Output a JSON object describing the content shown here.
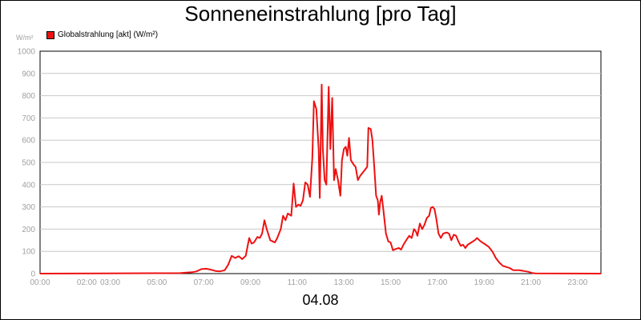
{
  "chart_data": {
    "type": "line",
    "title": "Sonneneinstrahlung [pro Tag]",
    "ylabel": "W/m²",
    "xlabel": "04.08",
    "ylim": [
      0,
      1000
    ],
    "y_ticks": [
      "0",
      "100",
      "200",
      "300",
      "400",
      "500",
      "600",
      "700",
      "800",
      "900",
      "1000"
    ],
    "x_tick_labels": [
      {
        "hour": 0,
        "label": "00:00"
      },
      {
        "hour": 2,
        "label": "02:00"
      },
      {
        "hour": 3,
        "label": "03:00"
      },
      {
        "hour": 5,
        "label": "05:00"
      },
      {
        "hour": 7,
        "label": "07:00"
      },
      {
        "hour": 9,
        "label": "09:00"
      },
      {
        "hour": 11,
        "label": "11:00"
      },
      {
        "hour": 13,
        "label": "13:00"
      },
      {
        "hour": 15,
        "label": "15:00"
      },
      {
        "hour": 17,
        "label": "17:00"
      },
      {
        "hour": 19,
        "label": "19:00"
      },
      {
        "hour": 21,
        "label": "21:00"
      },
      {
        "hour": 23,
        "label": "23:00"
      }
    ],
    "grid": true,
    "legend_position": "top-left",
    "series": [
      {
        "name": "Globalstrahlung [akt] (W/m²)",
        "color": "#ee1111",
        "points": [
          [
            0,
            0
          ],
          [
            6.0,
            2
          ],
          [
            6.2,
            4
          ],
          [
            6.5,
            6
          ],
          [
            6.7,
            10
          ],
          [
            6.9,
            20
          ],
          [
            7.1,
            22
          ],
          [
            7.3,
            18
          ],
          [
            7.5,
            12
          ],
          [
            7.7,
            10
          ],
          [
            7.9,
            15
          ],
          [
            8.05,
            40
          ],
          [
            8.2,
            80
          ],
          [
            8.35,
            70
          ],
          [
            8.5,
            78
          ],
          [
            8.65,
            65
          ],
          [
            8.8,
            80
          ],
          [
            8.95,
            160
          ],
          [
            9.05,
            135
          ],
          [
            9.15,
            140
          ],
          [
            9.3,
            165
          ],
          [
            9.4,
            160
          ],
          [
            9.5,
            180
          ],
          [
            9.6,
            240
          ],
          [
            9.7,
            200
          ],
          [
            9.85,
            150
          ],
          [
            9.95,
            145
          ],
          [
            10.05,
            140
          ],
          [
            10.15,
            160
          ],
          [
            10.3,
            200
          ],
          [
            10.4,
            260
          ],
          [
            10.5,
            240
          ],
          [
            10.6,
            270
          ],
          [
            10.75,
            260
          ],
          [
            10.85,
            405
          ],
          [
            10.95,
            300
          ],
          [
            11.05,
            310
          ],
          [
            11.15,
            305
          ],
          [
            11.25,
            330
          ],
          [
            11.35,
            410
          ],
          [
            11.45,
            400
          ],
          [
            11.55,
            345
          ],
          [
            11.65,
            520
          ],
          [
            11.72,
            775
          ],
          [
            11.82,
            740
          ],
          [
            11.92,
            560
          ],
          [
            11.97,
            340
          ],
          [
            12.05,
            850
          ],
          [
            12.1,
            560
          ],
          [
            12.18,
            420
          ],
          [
            12.25,
            400
          ],
          [
            12.35,
            840
          ],
          [
            12.42,
            560
          ],
          [
            12.5,
            790
          ],
          [
            12.58,
            420
          ],
          [
            12.65,
            470
          ],
          [
            12.75,
            420
          ],
          [
            12.85,
            350
          ],
          [
            12.92,
            510
          ],
          [
            13.0,
            560
          ],
          [
            13.08,
            570
          ],
          [
            13.15,
            530
          ],
          [
            13.22,
            610
          ],
          [
            13.3,
            510
          ],
          [
            13.42,
            490
          ],
          [
            13.5,
            480
          ],
          [
            13.6,
            420
          ],
          [
            13.7,
            440
          ],
          [
            13.85,
            460
          ],
          [
            14.0,
            480
          ],
          [
            14.05,
            655
          ],
          [
            14.15,
            650
          ],
          [
            14.22,
            600
          ],
          [
            14.3,
            480
          ],
          [
            14.38,
            350
          ],
          [
            14.45,
            330
          ],
          [
            14.5,
            265
          ],
          [
            14.55,
            320
          ],
          [
            14.62,
            350
          ],
          [
            14.7,
            280
          ],
          [
            14.8,
            180
          ],
          [
            14.9,
            145
          ],
          [
            15.0,
            140
          ],
          [
            15.1,
            105
          ],
          [
            15.2,
            110
          ],
          [
            15.35,
            115
          ],
          [
            15.45,
            108
          ],
          [
            15.55,
            130
          ],
          [
            15.7,
            155
          ],
          [
            15.8,
            170
          ],
          [
            15.9,
            160
          ],
          [
            16.0,
            200
          ],
          [
            16.08,
            190
          ],
          [
            16.15,
            170
          ],
          [
            16.25,
            225
          ],
          [
            16.35,
            200
          ],
          [
            16.45,
            220
          ],
          [
            16.55,
            250
          ],
          [
            16.65,
            260
          ],
          [
            16.72,
            295
          ],
          [
            16.8,
            300
          ],
          [
            16.88,
            290
          ],
          [
            16.95,
            250
          ],
          [
            17.05,
            180
          ],
          [
            17.15,
            160
          ],
          [
            17.25,
            180
          ],
          [
            17.4,
            185
          ],
          [
            17.5,
            180
          ],
          [
            17.6,
            150
          ],
          [
            17.7,
            175
          ],
          [
            17.8,
            170
          ],
          [
            17.9,
            145
          ],
          [
            18.0,
            125
          ],
          [
            18.1,
            130
          ],
          [
            18.2,
            115
          ],
          [
            18.3,
            130
          ],
          [
            18.45,
            140
          ],
          [
            18.6,
            150
          ],
          [
            18.7,
            160
          ],
          [
            18.85,
            145
          ],
          [
            19.0,
            135
          ],
          [
            19.2,
            120
          ],
          [
            19.35,
            100
          ],
          [
            19.5,
            70
          ],
          [
            19.65,
            50
          ],
          [
            19.8,
            35
          ],
          [
            19.95,
            30
          ],
          [
            20.1,
            25
          ],
          [
            20.25,
            15
          ],
          [
            20.5,
            15
          ],
          [
            20.7,
            12
          ],
          [
            20.9,
            8
          ],
          [
            21.05,
            3
          ],
          [
            21.2,
            1
          ],
          [
            24,
            0
          ]
        ]
      }
    ]
  }
}
